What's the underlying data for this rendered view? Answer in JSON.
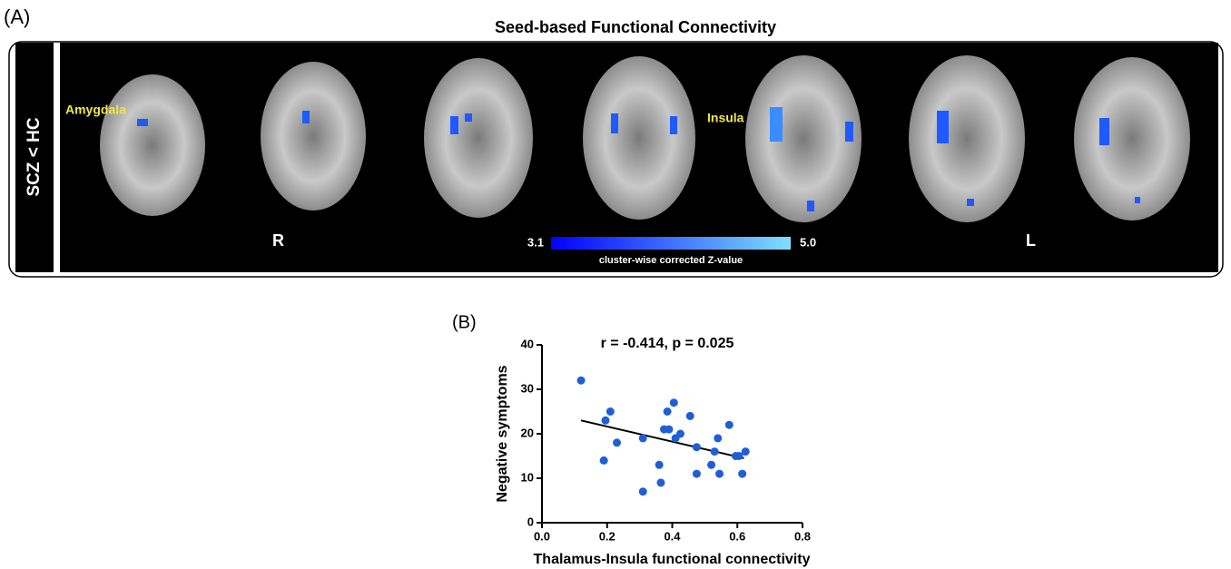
{
  "panel_a": {
    "label": "(A)",
    "title": "Seed-based Functional Connectivity",
    "row_label": "SCZ < HC",
    "annotations": [
      "Amygdala",
      "Insula"
    ],
    "side_right": "R",
    "side_left": "L",
    "colorbar": {
      "low": "3.1",
      "high": "5.0",
      "label": "cluster-wise corrected Z-value"
    }
  },
  "chart_data": {
    "type": "scatter",
    "panel_label": "(B)",
    "title": "r = -0.414, p = 0.025",
    "x_label": "Thalamus-Insula functional connectivity",
    "y_label": "Negative symptoms",
    "color": "#1f5fd6",
    "x": [
      0.12,
      0.21,
      0.195,
      0.23,
      0.19,
      0.31,
      0.31,
      0.36,
      0.365,
      0.375,
      0.385,
      0.39,
      0.405,
      0.41,
      0.425,
      0.455,
      0.475,
      0.475,
      0.52,
      0.53,
      0.54,
      0.545,
      0.575,
      0.595,
      0.605,
      0.615,
      0.625
    ],
    "values": [
      32,
      25,
      23,
      18,
      14,
      19,
      7,
      13,
      9,
      21,
      25,
      21,
      27,
      19,
      20,
      24,
      17,
      11,
      13,
      16,
      19,
      11,
      22,
      15,
      15,
      11,
      16
    ],
    "trendline": {
      "x": [
        0.12,
        0.62
      ],
      "values": [
        23,
        14.5
      ]
    },
    "xlim": [
      0,
      0.8
    ],
    "ylim": [
      0,
      40
    ],
    "xticks": [
      {
        "value": 0,
        "label": "0.0"
      },
      {
        "value": 0.2,
        "label": "0.2"
      },
      {
        "value": 0.4,
        "label": "0.4"
      },
      {
        "value": 0.6,
        "label": "0.6"
      },
      {
        "value": 0.8,
        "label": "0.8"
      }
    ],
    "yticks": [
      0,
      10,
      20,
      30,
      40
    ]
  }
}
